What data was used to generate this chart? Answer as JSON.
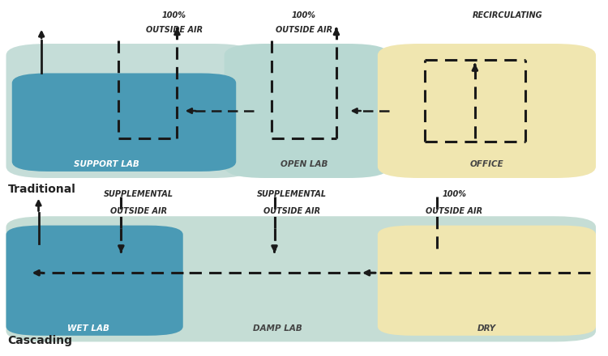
{
  "bg_color": "#ffffff",
  "teal_light": "#c5ddd8",
  "teal_darker": "#aecfca",
  "blue_dark": "#4a9ab5",
  "yellow_light": "#f0e6b0",
  "arrow_color": "#1a1a1a",
  "title_traditional": "Traditional",
  "title_cascading": "Cascading",
  "top": {
    "support_lab": "SUPPORT LAB",
    "open_lab": "OPEN LAB",
    "office": "OFFICE",
    "label1": "100%\nOUTSIDE AIR",
    "label2": "100%\nOUTSIDE AIR",
    "label3": "RECIRCULATING"
  },
  "bottom": {
    "wet_lab": "WET LAB",
    "damp_lab": "DAMP LAB",
    "dry": "DRY",
    "label1": "SUPPLEMENTAL\nOUTSIDE AIR",
    "label2": "SUPPLEMENTAL\nOUTSIDE AIR",
    "label3": "100%\nOUTSIDE AIR"
  }
}
